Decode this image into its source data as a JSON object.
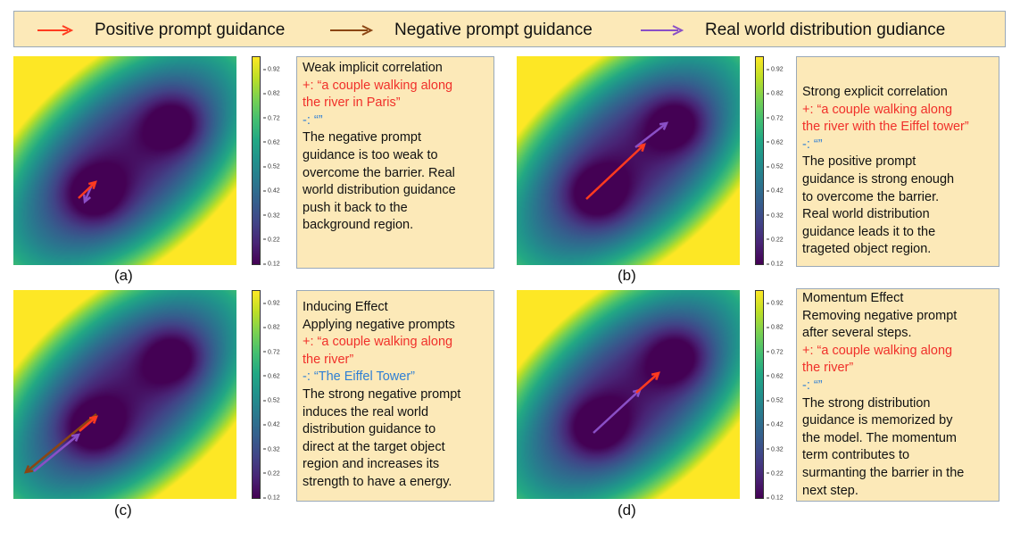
{
  "legend": [
    {
      "label": "Positive prompt guidance",
      "color": "#ff3b1f"
    },
    {
      "label": "Negative prompt guidance",
      "color": "#8b4513"
    },
    {
      "label": "Real world distribution gudiance",
      "color": "#8a4fc6"
    }
  ],
  "colorbar_ticks": [
    "0.92",
    "0.82",
    "0.72",
    "0.62",
    "0.52",
    "0.42",
    "0.32",
    "0.22",
    "0.12"
  ],
  "colormap": "viridis",
  "text_colors": {
    "red": "#f0302a",
    "blue": "#2f7fd4"
  },
  "panels": [
    {
      "label": "(a)",
      "lines": [
        {
          "t": "Weak implicit correlation",
          "c": ""
        },
        {
          "t": "+: “a couple walking along",
          "c": "red"
        },
        {
          "t": "the river in Paris”",
          "c": "red"
        },
        {
          "t": "-: “”",
          "c": "blue"
        },
        {
          "t": "The negative prompt",
          "c": ""
        },
        {
          "t": "guidance is too weak to",
          "c": ""
        },
        {
          "t": "overcome the barrier. Real",
          "c": ""
        },
        {
          "t": "world distribution guidance",
          "c": ""
        },
        {
          "t": "push it back to the",
          "c": ""
        },
        {
          "t": "background region.",
          "c": ""
        }
      ]
    },
    {
      "label": "(b)",
      "lines": [
        {
          "t": "Strong explicit correlation",
          "c": ""
        },
        {
          "t": "+: “a couple walking along",
          "c": "red"
        },
        {
          "t": "the river with the Eiffel tower”",
          "c": "red"
        },
        {
          "t": "-: “”",
          "c": "blue"
        },
        {
          "t": "The positive prompt",
          "c": ""
        },
        {
          "t": "guidance is strong enough",
          "c": ""
        },
        {
          "t": "to overcome the barrier.",
          "c": ""
        },
        {
          "t": "Real world distribution",
          "c": ""
        },
        {
          "t": "guidance leads it to the",
          "c": ""
        },
        {
          "t": "trageted object region.",
          "c": ""
        }
      ]
    },
    {
      "label": "(c)",
      "lines": [
        {
          "t": "Inducing Effect",
          "c": ""
        },
        {
          "t": "Applying negative prompts",
          "c": ""
        },
        {
          "t": "+: “a couple walking along",
          "c": "red"
        },
        {
          "t": "the river”",
          "c": "red"
        },
        {
          "t": "-: “The Eiffel Tower”",
          "c": "blue"
        },
        {
          "t": "The strong negative prompt",
          "c": ""
        },
        {
          "t": "induces the real world",
          "c": ""
        },
        {
          "t": "distribution guidance to",
          "c": ""
        },
        {
          "t": "direct at the target object",
          "c": ""
        },
        {
          "t": "region and increases its",
          "c": ""
        },
        {
          "t": "strength to have a  energy.",
          "c": ""
        }
      ]
    },
    {
      "label": "(d)",
      "lines": [
        {
          "t": "Momentum Effect",
          "c": ""
        },
        {
          "t": "Removing negative prompt",
          "c": ""
        },
        {
          "t": "after several steps.",
          "c": ""
        },
        {
          "t": "+: “a couple walking along",
          "c": "red"
        },
        {
          "t": "the river”",
          "c": "red"
        },
        {
          "t": "-: “”",
          "c": "blue"
        },
        {
          "t": "The strong distribution",
          "c": ""
        },
        {
          "t": "guidance is memorized by",
          "c": ""
        },
        {
          "t": "the model. The momentum",
          "c": ""
        },
        {
          "t": "term  contributes to",
          "c": ""
        },
        {
          "t": "surmanting the barrier in the",
          "c": ""
        },
        {
          "t": "next step.",
          "c": ""
        }
      ]
    }
  ]
}
